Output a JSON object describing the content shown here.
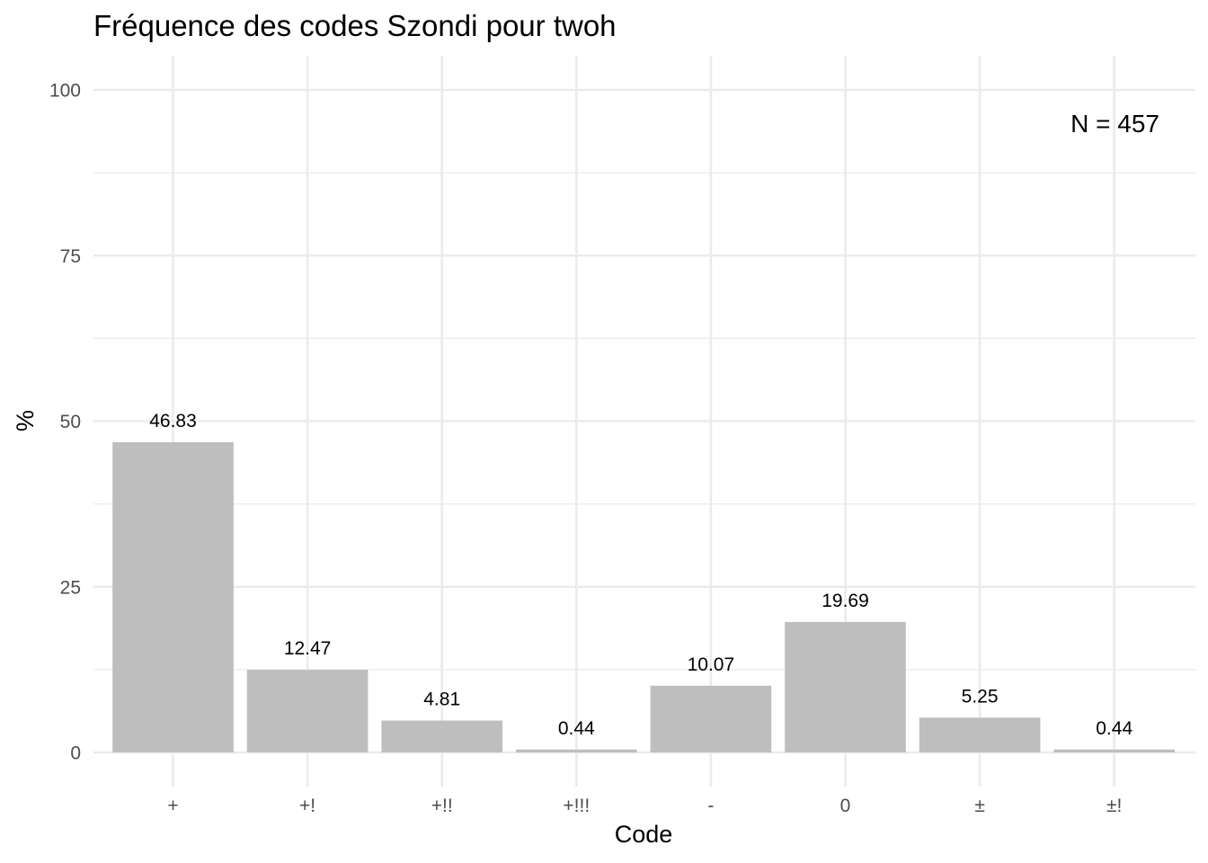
{
  "chart_data": {
    "type": "bar",
    "title": "Fréquence des codes Szondi pour twoh",
    "xlabel": "Code",
    "ylabel": "%",
    "categories": [
      "+",
      "+!",
      "+!!",
      "+!!!",
      "-",
      "0",
      "±",
      "±!"
    ],
    "values": [
      46.83,
      12.47,
      4.81,
      0.44,
      10.07,
      19.69,
      5.25,
      0.44
    ],
    "data_labels": [
      "46.83",
      "12.47",
      "4.81",
      "0.44",
      "10.07",
      "19.69",
      "5.25",
      "0.44"
    ],
    "ylim": [
      0,
      100
    ],
    "yticks": [
      0,
      25,
      50,
      75,
      100
    ],
    "annotation": "N = 457",
    "grid": true,
    "bar_color": "#bebebe",
    "grid_color": "#ebebeb"
  }
}
